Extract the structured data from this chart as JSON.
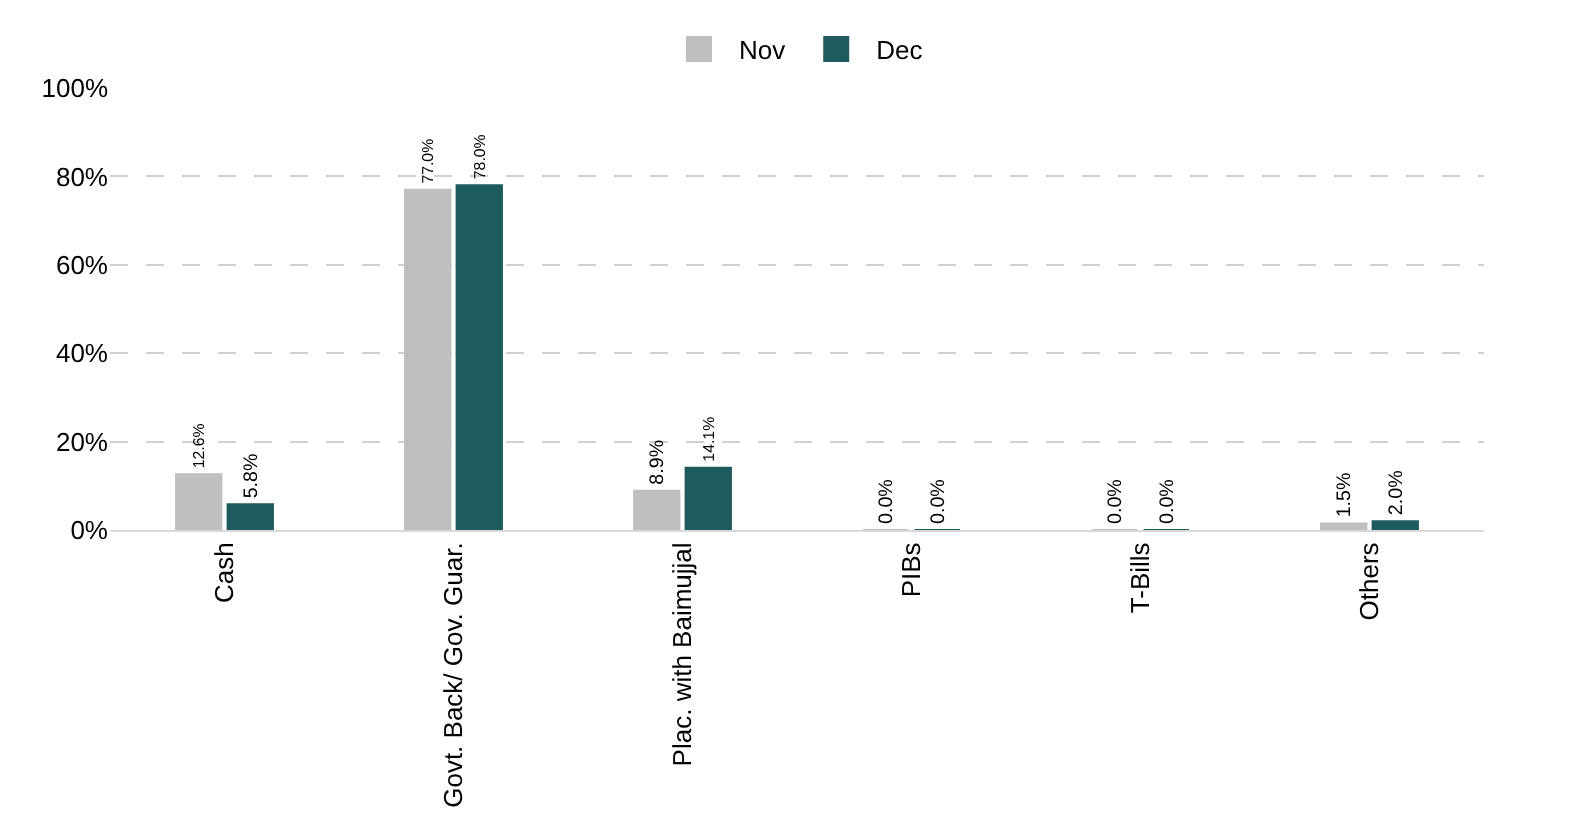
{
  "chart_data": {
    "type": "bar",
    "categories": [
      "Cash",
      "Govt. Back/ Gov. Guar.",
      "Plac. with Baimujjal",
      "PIBs",
      "T-Bills",
      "Others"
    ],
    "series": [
      {
        "name": "Nov",
        "color": "#bfbfbf",
        "values": [
          12.6,
          77.0,
          8.9,
          0.0,
          0.0,
          1.5
        ],
        "value_labels": [
          "12.6%",
          "77.0%",
          "8.9%",
          "0.0%",
          "0.0%",
          "1.5%"
        ]
      },
      {
        "name": "Dec",
        "color": "#1e5b5e",
        "values": [
          5.8,
          78.0,
          14.1,
          0.0,
          0.0,
          2.0
        ],
        "value_labels": [
          "5.8%",
          "78.0%",
          "14.1%",
          "0.0%",
          "0.0%",
          "2.0%"
        ]
      }
    ],
    "ylim": [
      0,
      100
    ],
    "yticks": [
      {
        "value": 0,
        "label": "0%"
      },
      {
        "value": 20,
        "label": "20%"
      },
      {
        "value": 40,
        "label": "40%"
      },
      {
        "value": 60,
        "label": "60%"
      },
      {
        "value": 80,
        "label": "80%"
      },
      {
        "value": 100,
        "label": "100%"
      }
    ],
    "grid": "y",
    "legend": "top"
  }
}
